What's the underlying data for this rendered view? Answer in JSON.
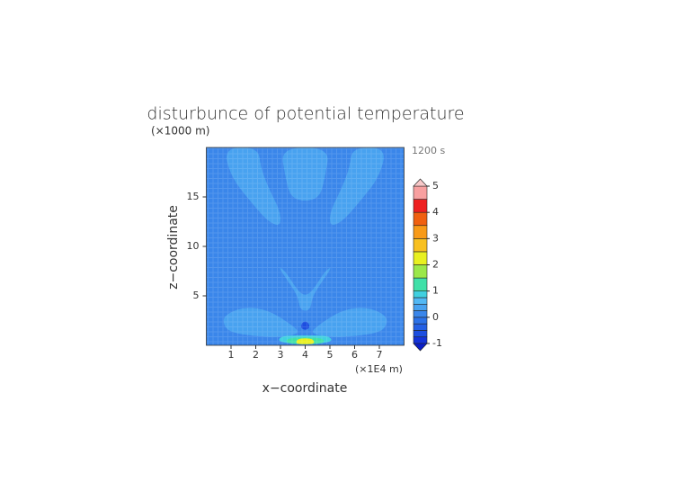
{
  "chart_data": {
    "type": "contour",
    "title": "disturbunce of potential temperature",
    "y_unit": "(×1000 m)",
    "time_label": "1200 s",
    "xlabel": "x−coordinate",
    "ylabel": "z−coordinate",
    "x_unit": "(×1E4 m)",
    "xlim": [
      0,
      8
    ],
    "ylim": [
      0,
      20
    ],
    "xticks": [
      1,
      2,
      3,
      4,
      5,
      6,
      7
    ],
    "yticks": [
      5,
      10,
      15
    ],
    "background_level": 0.1,
    "colorbar": {
      "levels": [
        -1,
        -0.75,
        -0.5,
        -0.25,
        0,
        0.25,
        0.5,
        0.75,
        1,
        1.5,
        2,
        2.5,
        3,
        3.5,
        4,
        4.5,
        5
      ],
      "colors": [
        "#1433d9",
        "#1c4ee0",
        "#2460e4",
        "#2c72e8",
        "#3a86ea",
        "#48a2f0",
        "#52b8f4",
        "#40d0e0",
        "#40e0a8",
        "#9be84a",
        "#e8f020",
        "#f8c020",
        "#f89a18",
        "#f06010",
        "#ee2020",
        "#f8a0a0"
      ],
      "under_color": "#0a1ec8",
      "over_color": "#f8c8c8",
      "ticks": [
        -1,
        0,
        1,
        2,
        3,
        4,
        5
      ]
    },
    "regions": [
      {
        "level": 0.3,
        "x": [
          0.7,
          1,
          1.8,
          2.5,
          3,
          3,
          2.5,
          2.2,
          2.1
        ],
        "z": [
          20,
          17,
          14.5,
          12.5,
          12,
          13.5,
          16,
          18,
          20
        ]
      },
      {
        "level": 0.3,
        "x": [
          3,
          3.2,
          3.4,
          4,
          4.6,
          4.8,
          5
        ],
        "z": [
          20,
          17,
          15,
          14.5,
          15,
          17,
          20
        ]
      },
      {
        "level": 0.3,
        "x": [
          5.9,
          5.8,
          5.5,
          5,
          5,
          5.5,
          6.2,
          7,
          7.3
        ],
        "z": [
          20,
          18,
          16,
          13.5,
          12,
          12.5,
          14.5,
          17,
          20
        ]
      },
      {
        "level": 0.3,
        "x": [
          2.9,
          3.3,
          3.7,
          3.8,
          4.2,
          4.3,
          4.7,
          5.1,
          4.8,
          4.3,
          4,
          3.7,
          3.2
        ],
        "z": [
          8,
          6.5,
          5,
          3.5,
          3.5,
          5,
          6.5,
          8,
          7.5,
          5.5,
          5,
          5.5,
          7.5
        ]
      },
      {
        "level": 0.3,
        "x": [
          0.7,
          1.5,
          2.5,
          3.5,
          3.8,
          3,
          2,
          1,
          0.7
        ],
        "z": [
          3,
          3.9,
          3.6,
          2,
          1.2,
          0.8,
          0.9,
          1.3,
          2
        ]
      },
      {
        "level": 0.3,
        "x": [
          7.3,
          6.5,
          5.5,
          4.5,
          4.2,
          5,
          6,
          7,
          7.3
        ],
        "z": [
          3,
          3.9,
          3.6,
          2,
          1.2,
          0.8,
          0.9,
          1.3,
          2
        ]
      },
      {
        "level": 0.9,
        "x": [
          2.9,
          3,
          3.5,
          4.5,
          5,
          5.1,
          4
        ],
        "z": [
          0.3,
          0.9,
          1,
          1,
          0.9,
          0.3,
          0.1
        ]
      },
      {
        "level": 1.2,
        "x": [
          3.2,
          3.3,
          4.7,
          4.8,
          4
        ],
        "z": [
          0.2,
          0.8,
          0.8,
          0.2,
          0.1
        ]
      },
      {
        "level": 2.2,
        "x": [
          3.6,
          3.7,
          4.3,
          4.4,
          4
        ],
        "z": [
          0.15,
          0.7,
          0.7,
          0.15,
          0.1
        ]
      },
      {
        "level": -0.6,
        "x": [
          3.8,
          3.9,
          4.1,
          4.2,
          4
        ],
        "z": [
          1.8,
          2.4,
          2.4,
          1.8,
          1.5
        ]
      }
    ]
  }
}
